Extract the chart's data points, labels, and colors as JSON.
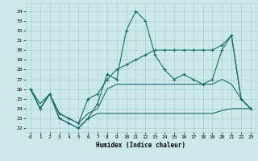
{
  "bg_color": "#cce8e8",
  "grid_color": "#aad4d4",
  "line_color": "#1a6b6b",
  "xlabel": "Humidex (Indice chaleur)",
  "xlim": [
    -0.5,
    23.5
  ],
  "ylim": [
    21.6,
    34.8
  ],
  "yticks": [
    22,
    23,
    24,
    25,
    26,
    27,
    28,
    29,
    30,
    31,
    32,
    33,
    34
  ],
  "xticks": [
    0,
    1,
    2,
    3,
    4,
    5,
    6,
    7,
    8,
    9,
    10,
    11,
    12,
    13,
    14,
    15,
    16,
    17,
    18,
    19,
    20,
    21,
    22,
    23
  ],
  "line1_x": [
    0,
    1,
    2,
    3,
    4,
    5,
    6,
    7,
    8,
    9,
    10,
    11,
    12,
    13,
    14,
    15,
    16,
    17,
    18,
    19,
    20,
    21,
    22,
    23
  ],
  "line1_y": [
    26.0,
    24.0,
    25.5,
    23.0,
    22.5,
    22.0,
    23.0,
    24.5,
    27.5,
    27.0,
    32.0,
    34.0,
    33.0,
    29.5,
    28.0,
    27.0,
    27.5,
    27.0,
    26.5,
    27.0,
    30.0,
    31.5,
    25.0,
    24.0
  ],
  "line2_x": [
    0,
    1,
    2,
    3,
    4,
    5,
    6,
    7,
    8,
    9,
    10,
    11,
    12,
    13,
    14,
    15,
    16,
    17,
    18,
    19,
    20,
    21,
    22,
    23
  ],
  "line2_y": [
    26.0,
    24.0,
    25.5,
    23.5,
    23.0,
    22.5,
    25.0,
    25.5,
    27.0,
    28.0,
    28.5,
    29.0,
    29.5,
    30.0,
    30.0,
    30.0,
    30.0,
    30.0,
    30.0,
    30.0,
    30.5,
    31.5,
    25.0,
    24.0
  ],
  "line3_x": [
    0,
    1,
    2,
    3,
    4,
    5,
    6,
    7,
    8,
    9,
    10,
    11,
    12,
    13,
    14,
    15,
    16,
    17,
    18,
    19,
    20,
    21,
    22,
    23
  ],
  "line3_y": [
    26.0,
    24.5,
    25.5,
    23.5,
    23.0,
    22.5,
    23.5,
    24.0,
    26.0,
    26.5,
    26.5,
    26.5,
    26.5,
    26.5,
    26.5,
    26.5,
    26.5,
    26.5,
    26.5,
    26.5,
    27.0,
    26.5,
    25.0,
    24.0
  ],
  "line4_x": [
    0,
    1,
    2,
    3,
    4,
    5,
    6,
    7,
    8,
    9,
    10,
    11,
    12,
    13,
    14,
    15,
    16,
    17,
    18,
    19,
    20,
    21,
    22,
    23
  ],
  "line4_y": [
    26.0,
    24.0,
    25.5,
    23.0,
    22.5,
    22.0,
    23.0,
    23.5,
    23.5,
    23.5,
    23.5,
    23.5,
    23.5,
    23.5,
    23.5,
    23.5,
    23.5,
    23.5,
    23.5,
    23.5,
    23.8,
    24.0,
    24.0,
    24.0
  ]
}
